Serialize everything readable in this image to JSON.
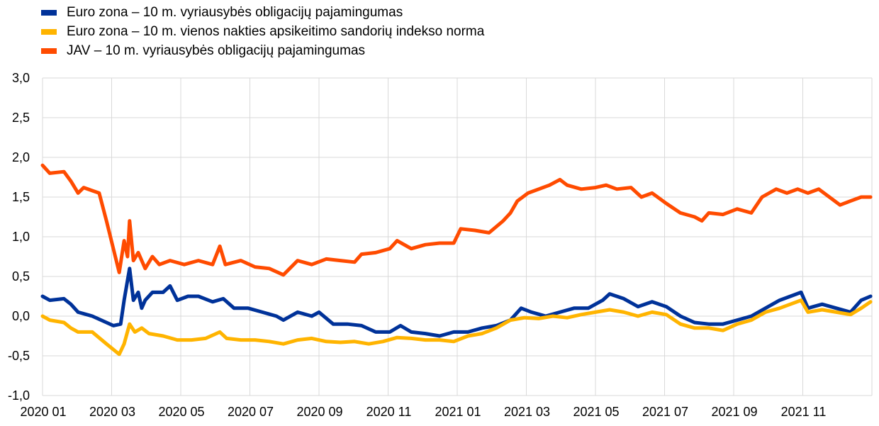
{
  "chart_data": {
    "type": "line",
    "title": "",
    "xlabel": "",
    "ylabel": "",
    "x_unit": "months since 2020-01",
    "xlim": [
      0,
      24
    ],
    "ylim": [
      -1.0,
      3.0
    ],
    "y_ticks": [
      -1.0,
      -0.5,
      0.0,
      0.5,
      1.0,
      1.5,
      2.0,
      2.5,
      3.0
    ],
    "y_tick_labels": [
      "-1,0",
      "-0,5",
      "0,0",
      "0,5",
      "1,0",
      "1,5",
      "2,0",
      "2,5",
      "3,0"
    ],
    "x_ticks": [
      0,
      2,
      4,
      6,
      8,
      10,
      12,
      14,
      16,
      18,
      20,
      22
    ],
    "x_tick_labels": [
      "2020 01",
      "2020 03",
      "2020 05",
      "2020 07",
      "2020 09",
      "2020 11",
      "2021 01",
      "2021 03",
      "2021 05",
      "2021 07",
      "2021 09",
      "2021 11"
    ],
    "grid": true,
    "legend_position": "top-left",
    "series": [
      {
        "name": "Euro zona – 10 m. vyriausybės obligacijų pajamingumas",
        "color": "#003299",
        "points": [
          [
            0,
            0.25
          ],
          [
            0.21,
            0.2
          ],
          [
            0.62,
            0.22
          ],
          [
            0.82,
            0.15
          ],
          [
            1.03,
            0.05
          ],
          [
            1.44,
            0.0
          ],
          [
            1.85,
            -0.08
          ],
          [
            2.05,
            -0.12
          ],
          [
            2.26,
            -0.1
          ],
          [
            2.36,
            0.2
          ],
          [
            2.46,
            0.45
          ],
          [
            2.52,
            0.6
          ],
          [
            2.63,
            0.2
          ],
          [
            2.77,
            0.3
          ],
          [
            2.87,
            0.1
          ],
          [
            2.97,
            0.2
          ],
          [
            3.18,
            0.3
          ],
          [
            3.49,
            0.3
          ],
          [
            3.69,
            0.38
          ],
          [
            3.9,
            0.2
          ],
          [
            4.21,
            0.25
          ],
          [
            4.51,
            0.25
          ],
          [
            4.92,
            0.18
          ],
          [
            5.23,
            0.22
          ],
          [
            5.54,
            0.1
          ],
          [
            5.95,
            0.1
          ],
          [
            6.36,
            0.05
          ],
          [
            6.77,
            0.0
          ],
          [
            6.97,
            -0.05
          ],
          [
            7.38,
            0.05
          ],
          [
            7.79,
            0.0
          ],
          [
            8.0,
            0.05
          ],
          [
            8.41,
            -0.1
          ],
          [
            8.82,
            -0.1
          ],
          [
            9.23,
            -0.12
          ],
          [
            9.64,
            -0.2
          ],
          [
            10.05,
            -0.2
          ],
          [
            10.36,
            -0.12
          ],
          [
            10.67,
            -0.2
          ],
          [
            11.08,
            -0.22
          ],
          [
            11.49,
            -0.25
          ],
          [
            11.9,
            -0.2
          ],
          [
            12.31,
            -0.2
          ],
          [
            12.72,
            -0.15
          ],
          [
            13.13,
            -0.12
          ],
          [
            13.54,
            -0.05
          ],
          [
            13.85,
            0.1
          ],
          [
            14.15,
            0.05
          ],
          [
            14.56,
            0.0
          ],
          [
            14.97,
            0.05
          ],
          [
            15.38,
            0.1
          ],
          [
            15.79,
            0.1
          ],
          [
            16.21,
            0.2
          ],
          [
            16.41,
            0.28
          ],
          [
            16.82,
            0.22
          ],
          [
            17.23,
            0.12
          ],
          [
            17.64,
            0.18
          ],
          [
            18.05,
            0.12
          ],
          [
            18.46,
            0.0
          ],
          [
            18.87,
            -0.08
          ],
          [
            19.28,
            -0.1
          ],
          [
            19.69,
            -0.1
          ],
          [
            20.1,
            -0.05
          ],
          [
            20.51,
            0.0
          ],
          [
            20.92,
            0.1
          ],
          [
            21.33,
            0.2
          ],
          [
            21.64,
            0.25
          ],
          [
            21.95,
            0.3
          ],
          [
            22.15,
            0.1
          ],
          [
            22.56,
            0.15
          ],
          [
            22.97,
            0.1
          ],
          [
            23.38,
            0.05
          ],
          [
            23.69,
            0.2
          ],
          [
            23.96,
            0.25
          ]
        ]
      },
      {
        "name": "Euro zona – 10 m. vienos nakties apsikeitimo sandorių indekso norma",
        "color": "#FFB400",
        "points": [
          [
            0,
            0.0
          ],
          [
            0.21,
            -0.05
          ],
          [
            0.62,
            -0.08
          ],
          [
            0.82,
            -0.15
          ],
          [
            1.03,
            -0.2
          ],
          [
            1.44,
            -0.2
          ],
          [
            1.85,
            -0.35
          ],
          [
            2.22,
            -0.48
          ],
          [
            2.36,
            -0.35
          ],
          [
            2.52,
            -0.1
          ],
          [
            2.67,
            -0.2
          ],
          [
            2.87,
            -0.15
          ],
          [
            3.08,
            -0.22
          ],
          [
            3.49,
            -0.25
          ],
          [
            3.9,
            -0.3
          ],
          [
            4.31,
            -0.3
          ],
          [
            4.72,
            -0.28
          ],
          [
            5.13,
            -0.2
          ],
          [
            5.33,
            -0.28
          ],
          [
            5.74,
            -0.3
          ],
          [
            6.15,
            -0.3
          ],
          [
            6.56,
            -0.32
          ],
          [
            6.97,
            -0.35
          ],
          [
            7.38,
            -0.3
          ],
          [
            7.79,
            -0.28
          ],
          [
            8.21,
            -0.32
          ],
          [
            8.62,
            -0.33
          ],
          [
            9.03,
            -0.32
          ],
          [
            9.44,
            -0.35
          ],
          [
            9.85,
            -0.32
          ],
          [
            10.26,
            -0.27
          ],
          [
            10.67,
            -0.28
          ],
          [
            11.08,
            -0.3
          ],
          [
            11.49,
            -0.3
          ],
          [
            11.9,
            -0.32
          ],
          [
            12.31,
            -0.25
          ],
          [
            12.72,
            -0.22
          ],
          [
            13.13,
            -0.15
          ],
          [
            13.54,
            -0.05
          ],
          [
            13.95,
            -0.02
          ],
          [
            14.36,
            -0.03
          ],
          [
            14.77,
            0.0
          ],
          [
            15.18,
            -0.02
          ],
          [
            15.59,
            0.02
          ],
          [
            16.0,
            0.05
          ],
          [
            16.41,
            0.08
          ],
          [
            16.82,
            0.05
          ],
          [
            17.23,
            0.0
          ],
          [
            17.64,
            0.05
          ],
          [
            18.05,
            0.02
          ],
          [
            18.46,
            -0.1
          ],
          [
            18.87,
            -0.15
          ],
          [
            19.28,
            -0.15
          ],
          [
            19.69,
            -0.18
          ],
          [
            20.1,
            -0.1
          ],
          [
            20.51,
            -0.05
          ],
          [
            20.92,
            0.05
          ],
          [
            21.33,
            0.1
          ],
          [
            21.64,
            0.15
          ],
          [
            21.95,
            0.2
          ],
          [
            22.15,
            0.05
          ],
          [
            22.56,
            0.08
          ],
          [
            22.97,
            0.05
          ],
          [
            23.38,
            0.02
          ],
          [
            23.69,
            0.1
          ],
          [
            23.96,
            0.18
          ]
        ]
      },
      {
        "name": "JAV – 10 m. vyriausybės obligacijų pajamingumas",
        "color": "#FF4B00",
        "points": [
          [
            0,
            1.9
          ],
          [
            0.21,
            1.8
          ],
          [
            0.62,
            1.82
          ],
          [
            0.82,
            1.7
          ],
          [
            1.03,
            1.55
          ],
          [
            1.19,
            1.62
          ],
          [
            1.44,
            1.58
          ],
          [
            1.64,
            1.55
          ],
          [
            1.85,
            1.2
          ],
          [
            2.05,
            0.85
          ],
          [
            2.22,
            0.55
          ],
          [
            2.36,
            0.95
          ],
          [
            2.46,
            0.75
          ],
          [
            2.52,
            1.2
          ],
          [
            2.63,
            0.7
          ],
          [
            2.77,
            0.8
          ],
          [
            2.97,
            0.6
          ],
          [
            3.18,
            0.75
          ],
          [
            3.38,
            0.65
          ],
          [
            3.69,
            0.7
          ],
          [
            4.1,
            0.65
          ],
          [
            4.51,
            0.7
          ],
          [
            4.92,
            0.65
          ],
          [
            5.13,
            0.88
          ],
          [
            5.29,
            0.65
          ],
          [
            5.74,
            0.7
          ],
          [
            6.15,
            0.62
          ],
          [
            6.56,
            0.6
          ],
          [
            6.97,
            0.52
          ],
          [
            7.38,
            0.7
          ],
          [
            7.79,
            0.65
          ],
          [
            8.21,
            0.72
          ],
          [
            8.62,
            0.7
          ],
          [
            9.03,
            0.68
          ],
          [
            9.23,
            0.78
          ],
          [
            9.64,
            0.8
          ],
          [
            10.05,
            0.85
          ],
          [
            10.26,
            0.95
          ],
          [
            10.67,
            0.85
          ],
          [
            11.08,
            0.9
          ],
          [
            11.49,
            0.92
          ],
          [
            11.9,
            0.92
          ],
          [
            12.1,
            1.1
          ],
          [
            12.51,
            1.08
          ],
          [
            12.92,
            1.05
          ],
          [
            13.33,
            1.2
          ],
          [
            13.54,
            1.3
          ],
          [
            13.74,
            1.45
          ],
          [
            14.05,
            1.55
          ],
          [
            14.36,
            1.6
          ],
          [
            14.67,
            1.65
          ],
          [
            14.97,
            1.72
          ],
          [
            15.18,
            1.65
          ],
          [
            15.59,
            1.6
          ],
          [
            16.0,
            1.62
          ],
          [
            16.31,
            1.65
          ],
          [
            16.62,
            1.6
          ],
          [
            17.03,
            1.62
          ],
          [
            17.33,
            1.5
          ],
          [
            17.64,
            1.55
          ],
          [
            18.05,
            1.42
          ],
          [
            18.46,
            1.3
          ],
          [
            18.87,
            1.25
          ],
          [
            19.08,
            1.2
          ],
          [
            19.28,
            1.3
          ],
          [
            19.69,
            1.28
          ],
          [
            20.1,
            1.35
          ],
          [
            20.51,
            1.3
          ],
          [
            20.82,
            1.5
          ],
          [
            21.23,
            1.6
          ],
          [
            21.54,
            1.55
          ],
          [
            21.85,
            1.6
          ],
          [
            22.15,
            1.55
          ],
          [
            22.46,
            1.6
          ],
          [
            22.77,
            1.5
          ],
          [
            23.08,
            1.4
          ],
          [
            23.38,
            1.45
          ],
          [
            23.69,
            1.5
          ],
          [
            23.96,
            1.5
          ]
        ]
      }
    ]
  }
}
